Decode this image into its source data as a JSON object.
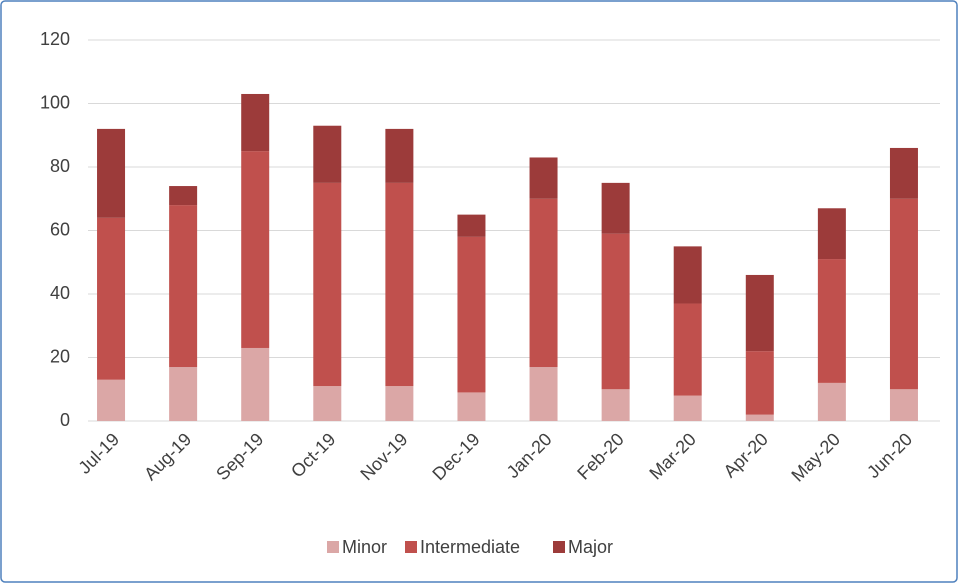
{
  "chart_data": {
    "type": "stacked_bar",
    "categories": [
      "Jul-19",
      "Aug-19",
      "Sep-19",
      "Oct-19",
      "Nov-19",
      "Dec-19",
      "Jan-20",
      "Feb-20",
      "Mar-20",
      "Apr-20",
      "May-20",
      "Jun-20"
    ],
    "series": [
      {
        "name": "Minor",
        "color": "#dba7a6",
        "values": [
          13,
          17,
          23,
          11,
          11,
          9,
          17,
          10,
          8,
          2,
          12,
          10
        ]
      },
      {
        "name": "Intermediate",
        "color": "#c0504d",
        "values": [
          51,
          51,
          62,
          64,
          64,
          49,
          53,
          49,
          29,
          20,
          39,
          60
        ]
      },
      {
        "name": "Major",
        "color": "#9c3b3a",
        "values": [
          28,
          6,
          18,
          18,
          17,
          7,
          13,
          16,
          18,
          24,
          16,
          16
        ]
      }
    ],
    "ylim": [
      0,
      120
    ],
    "yticks": [
      0,
      20,
      40,
      60,
      80,
      100,
      120
    ],
    "grid": true,
    "legend": "bottom"
  }
}
